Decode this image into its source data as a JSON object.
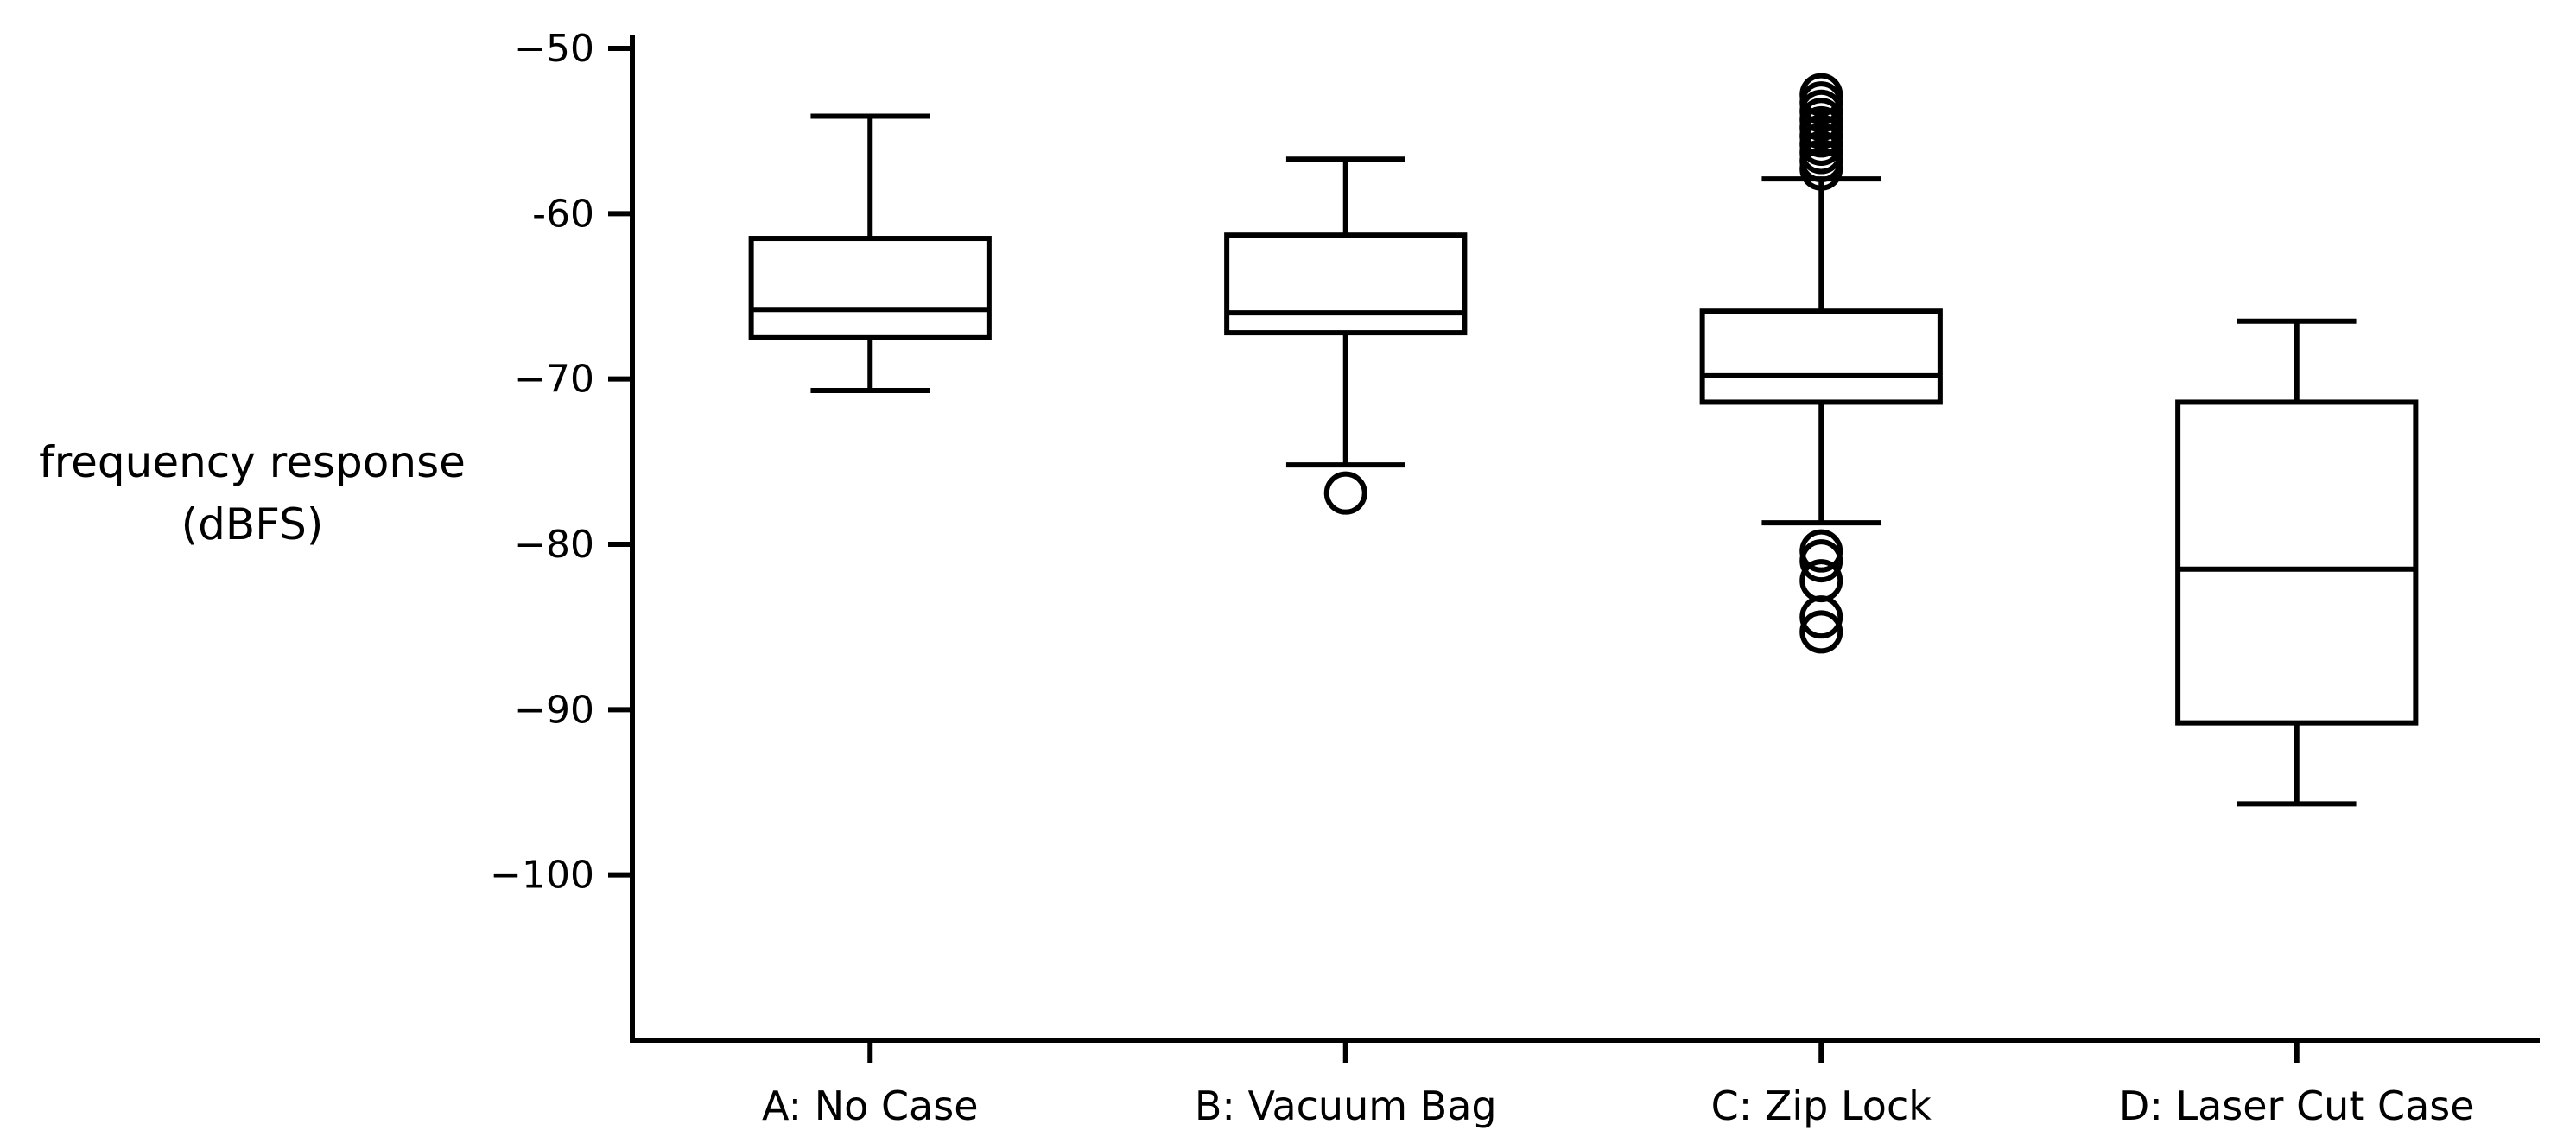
{
  "chart_data": {
    "type": "boxplot",
    "title": "",
    "xlabel": "",
    "ylabel_lines": [
      "frequency response",
      "(dBFS)"
    ],
    "ylim": [
      -110,
      -50
    ],
    "yticks": [
      -50,
      -60,
      -70,
      -80,
      -90,
      -100
    ],
    "ytick_labels": [
      "−50",
      "-60",
      "−70",
      "−80",
      "−90",
      "−100"
    ],
    "grid": false,
    "categories": [
      "A: No Case",
      "B: Vacuum Bag",
      "C: Zip Lock",
      "D: Laser Cut Case"
    ],
    "boxes": [
      {
        "whisker_high": -54.1,
        "q3": -61.5,
        "median": -65.8,
        "q1": -67.5,
        "whisker_low": -70.7,
        "outliers": []
      },
      {
        "whisker_high": -56.7,
        "q3": -61.3,
        "median": -66.0,
        "q1": -67.2,
        "whisker_low": -75.2,
        "outliers": [
          -76.9
        ]
      },
      {
        "whisker_high": -57.9,
        "q3": -65.9,
        "median": -69.8,
        "q1": -71.4,
        "whisker_low": -78.7,
        "outliers": [
          -52.8,
          -53.3,
          -53.8,
          -54.3,
          -54.8,
          -55.3,
          -55.8,
          -56.3,
          -56.8,
          -57.3,
          -80.4,
          -81.0,
          -82.2,
          -84.4,
          -85.3
        ]
      },
      {
        "whisker_high": -66.5,
        "q3": -71.4,
        "median": -81.5,
        "q1": -90.8,
        "whisker_low": -95.7,
        "outliers": []
      }
    ]
  }
}
